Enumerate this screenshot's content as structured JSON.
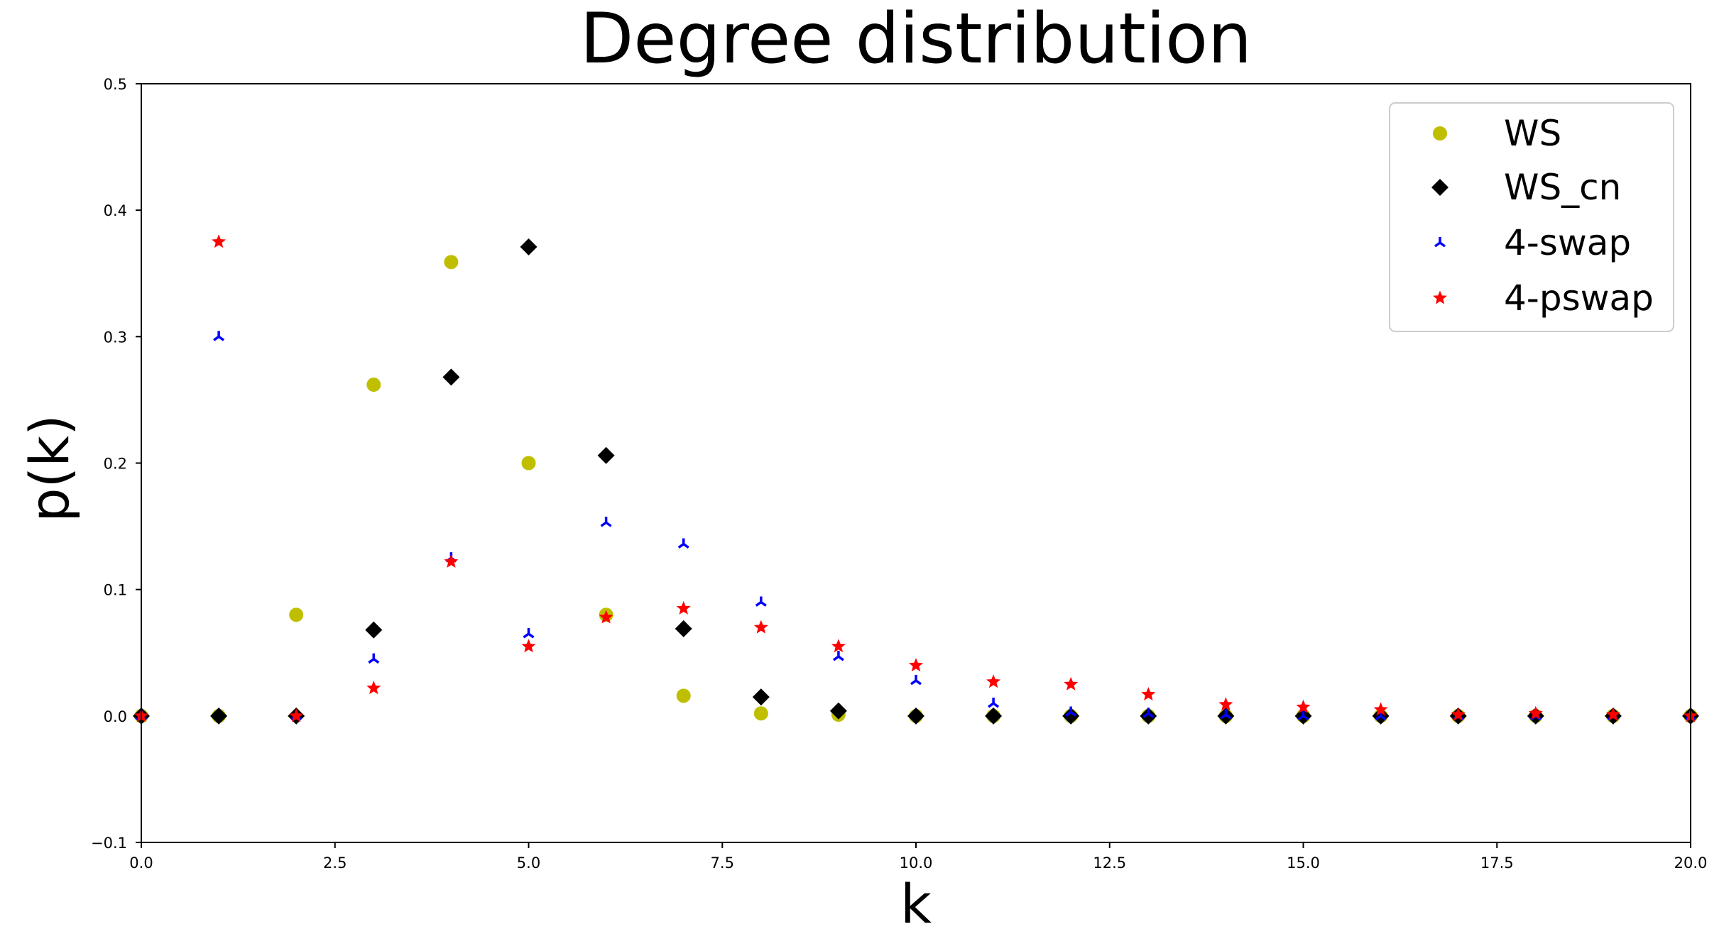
{
  "chart_data": {
    "type": "scatter",
    "title": "Degree distribution",
    "xlabel": "k",
    "ylabel": "p(k)",
    "xlim": [
      0,
      20
    ],
    "ylim": [
      -0.1,
      0.5
    ],
    "xticks": [
      "0.0",
      "2.5",
      "5.0",
      "7.5",
      "10.0",
      "12.5",
      "15.0",
      "17.5",
      "20.0"
    ],
    "yticks": [
      "−0.1",
      "0.0",
      "0.1",
      "0.2",
      "0.3",
      "0.4",
      "0.5"
    ],
    "grid": false,
    "legend_position": "top-right",
    "series": [
      {
        "name": "WS",
        "marker": "circle",
        "color": "#bfbf00",
        "x": [
          0,
          1,
          2,
          3,
          4,
          5,
          6,
          7,
          8,
          9,
          10,
          11,
          12,
          13,
          14,
          15,
          16,
          17,
          18,
          19,
          20
        ],
        "y": [
          0.0,
          0.0,
          0.08,
          0.262,
          0.359,
          0.2,
          0.08,
          0.016,
          0.002,
          0.001,
          0.0,
          0.0,
          0.0,
          0.0,
          0.0,
          0.0,
          0.0,
          0.0,
          0.0,
          0.0,
          0.0
        ]
      },
      {
        "name": "WS_cn",
        "marker": "diamond",
        "color": "#000000",
        "x": [
          0,
          1,
          2,
          3,
          4,
          5,
          6,
          7,
          8,
          9,
          10,
          11,
          12,
          13,
          14,
          15,
          16,
          17,
          18,
          19,
          20
        ],
        "y": [
          0.0,
          0.0,
          0.0,
          0.068,
          0.268,
          0.371,
          0.206,
          0.069,
          0.015,
          0.004,
          0.0,
          0.0,
          0.0,
          0.0,
          0.0,
          0.0,
          0.0,
          0.0,
          0.0,
          0.0,
          0.0
        ]
      },
      {
        "name": "4-swap",
        "marker": "tri",
        "color": "#0000ff",
        "x": [
          0,
          1,
          2,
          3,
          4,
          5,
          6,
          7,
          8,
          9,
          10,
          11,
          12,
          13,
          14,
          15,
          16,
          17,
          18,
          19,
          20
        ],
        "y": [
          0.0,
          0.3,
          0.0,
          0.045,
          0.125,
          0.065,
          0.153,
          0.136,
          0.09,
          0.047,
          0.028,
          0.01,
          0.003,
          0.002,
          0.001,
          0.0,
          0.0,
          0.0,
          0.0,
          0.0,
          0.0
        ]
      },
      {
        "name": "4-pswap",
        "marker": "star",
        "color": "#ff0000",
        "x": [
          0,
          1,
          2,
          3,
          4,
          5,
          6,
          7,
          8,
          9,
          10,
          11,
          12,
          13,
          14,
          15,
          16,
          17,
          18,
          19,
          20
        ],
        "y": [
          0.0,
          0.375,
          0.0,
          0.022,
          0.122,
          0.055,
          0.078,
          0.085,
          0.07,
          0.055,
          0.04,
          0.027,
          0.025,
          0.017,
          0.009,
          0.007,
          0.005,
          0.001,
          0.002,
          0.001,
          0.0
        ]
      }
    ]
  }
}
